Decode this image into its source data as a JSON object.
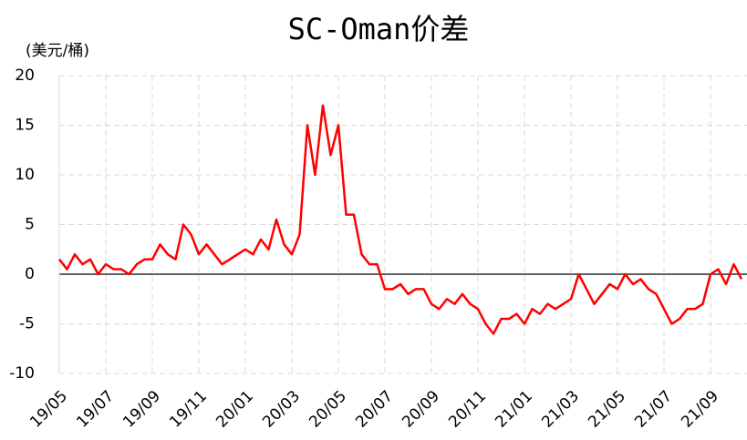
{
  "chart_data": {
    "type": "line",
    "title": "SC-Oman价差",
    "y_label": "(美元/桶)",
    "categories": [
      "19/05",
      null,
      null,
      null,
      null,
      null,
      "19/07",
      null,
      null,
      null,
      null,
      null,
      "19/09",
      null,
      null,
      null,
      null,
      null,
      "19/11",
      null,
      null,
      null,
      null,
      null,
      "20/01",
      null,
      null,
      null,
      null,
      null,
      "20/03",
      null,
      null,
      null,
      null,
      null,
      "20/05",
      null,
      null,
      null,
      null,
      null,
      "20/07",
      null,
      null,
      null,
      null,
      null,
      "20/09",
      null,
      null,
      null,
      null,
      null,
      "20/11",
      null,
      null,
      null,
      null,
      null,
      "21/01",
      null,
      null,
      null,
      null,
      null,
      "21/03",
      null,
      null,
      null,
      null,
      null,
      "21/05",
      null,
      null,
      null,
      null,
      null,
      "21/07",
      null,
      null,
      null,
      null,
      null,
      "21/09",
      null,
      null,
      null,
      null
    ],
    "series": [
      {
        "color": "#ff0000",
        "values": [
          1.5,
          0.5,
          2,
          1,
          1.5,
          0,
          1,
          0.5,
          0.5,
          0,
          1,
          1.5,
          1.5,
          3,
          2,
          1.5,
          5,
          4,
          2,
          3,
          2,
          1,
          1.5,
          2,
          2.5,
          2,
          3.5,
          2.5,
          5.5,
          3,
          2,
          4,
          15,
          10,
          17,
          12,
          15,
          6,
          6,
          2,
          1,
          1,
          -1.5,
          -1.5,
          -1,
          -2,
          -1.5,
          -1.5,
          -3,
          -3.5,
          -2.5,
          -3,
          -2,
          -3,
          -3.5,
          -5,
          -6,
          -4.5,
          -4.5,
          -4,
          -5,
          -3.5,
          -4,
          -3,
          -3.5,
          -3,
          -2.5,
          0,
          -1.5,
          -3,
          -2,
          -1,
          -1.5,
          0,
          -1,
          -0.5,
          -1.5,
          -2,
          -3.5,
          -5,
          -4.5,
          -3.5,
          -3.5,
          -3,
          0,
          0.5,
          -1,
          1,
          -0.5
        ]
      }
    ],
    "ylim": [
      -10,
      20
    ],
    "yticks": [
      -10,
      -5,
      0,
      5,
      10,
      15,
      20
    ],
    "grid": true,
    "negative_tick_color": "#ff0000"
  }
}
